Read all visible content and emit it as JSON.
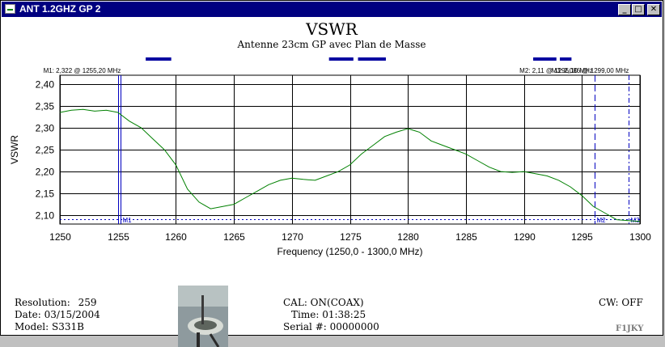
{
  "window": {
    "title": "ANT 1.2GHZ GP 2",
    "minimize": "_",
    "maximize": "□",
    "close": "✕"
  },
  "header": {
    "title": "VSWR",
    "subtitle": "Antenne 23cm GP avec Plan de Masse"
  },
  "markers": [
    {
      "label": "M1: 2,322  @ 1255,20 MHz",
      "tag": "M1",
      "freq": 1255.2,
      "vswr": 2.322
    },
    {
      "label": "M2: 2,11  @ 1296,10 MHz",
      "tag": "M2",
      "freq": 1296.1,
      "vswr": 2.11
    },
    {
      "label": "M3: 2,086  @ 1299,00 MHz",
      "tag": "M3",
      "freq": 1299.0,
      "vswr": 2.086
    }
  ],
  "limit_bars": [
    {
      "from": 1257.4,
      "to": 1259.6
    },
    {
      "from": 1273.2,
      "to": 1275.3
    },
    {
      "from": 1275.7,
      "to": 1278.1
    },
    {
      "from": 1290.8,
      "to": 1292.8
    },
    {
      "from": 1293.1,
      "to": 1294.1
    }
  ],
  "chart_data": {
    "type": "line",
    "xlabel": "Frequency (1250,0 - 1300,0 MHz)",
    "ylabel": "VSWR",
    "xlim": [
      1250,
      1300
    ],
    "ylim": [
      2.08,
      2.42
    ],
    "x_ticks": [
      1250,
      1255,
      1260,
      1265,
      1270,
      1275,
      1280,
      1285,
      1290,
      1295,
      1300
    ],
    "y_ticks": [
      2.1,
      2.15,
      2.2,
      2.25,
      2.3,
      2.35,
      2.4
    ],
    "y_tick_labels": [
      "2,10",
      "2,15",
      "2,20",
      "2,25",
      "2,30",
      "2,35",
      "2,40"
    ],
    "grid": true,
    "series": [
      {
        "color": "#008000",
        "x": [
          1250,
          1251,
          1252,
          1253,
          1254,
          1255,
          1256,
          1257,
          1258,
          1259,
          1260,
          1261,
          1262,
          1263,
          1264,
          1265,
          1266,
          1267,
          1268,
          1269,
          1270,
          1271,
          1272,
          1273,
          1274,
          1275,
          1276,
          1277,
          1278,
          1279,
          1280,
          1281,
          1282,
          1283,
          1284,
          1285,
          1286,
          1287,
          1288,
          1289,
          1290,
          1291,
          1292,
          1293,
          1294,
          1295,
          1296,
          1297,
          1298,
          1299,
          1300
        ],
        "y": [
          2.335,
          2.34,
          2.342,
          2.338,
          2.34,
          2.335,
          2.315,
          2.3,
          2.275,
          2.25,
          2.215,
          2.16,
          2.13,
          2.115,
          2.12,
          2.125,
          2.14,
          2.155,
          2.17,
          2.18,
          2.185,
          2.182,
          2.18,
          2.19,
          2.2,
          2.215,
          2.24,
          2.26,
          2.28,
          2.29,
          2.298,
          2.29,
          2.27,
          2.26,
          2.25,
          2.24,
          2.225,
          2.21,
          2.2,
          2.198,
          2.2,
          2.195,
          2.19,
          2.18,
          2.165,
          2.145,
          2.12,
          2.105,
          2.09,
          2.088,
          2.086
        ]
      }
    ]
  },
  "info": {
    "resolution_label": "Resolution:",
    "resolution_value": "259",
    "date_label": "Date:",
    "date_value": "03/15/2004",
    "model_label": "Model:",
    "model_value": "S331B",
    "cal": "CAL: ON(COAX)",
    "time_label": "Time:",
    "time_value": "01:38:25",
    "serial_label": "Serial #:",
    "serial_value": "00000000",
    "cw": "CW: OFF",
    "callsign": "F1JKY"
  }
}
